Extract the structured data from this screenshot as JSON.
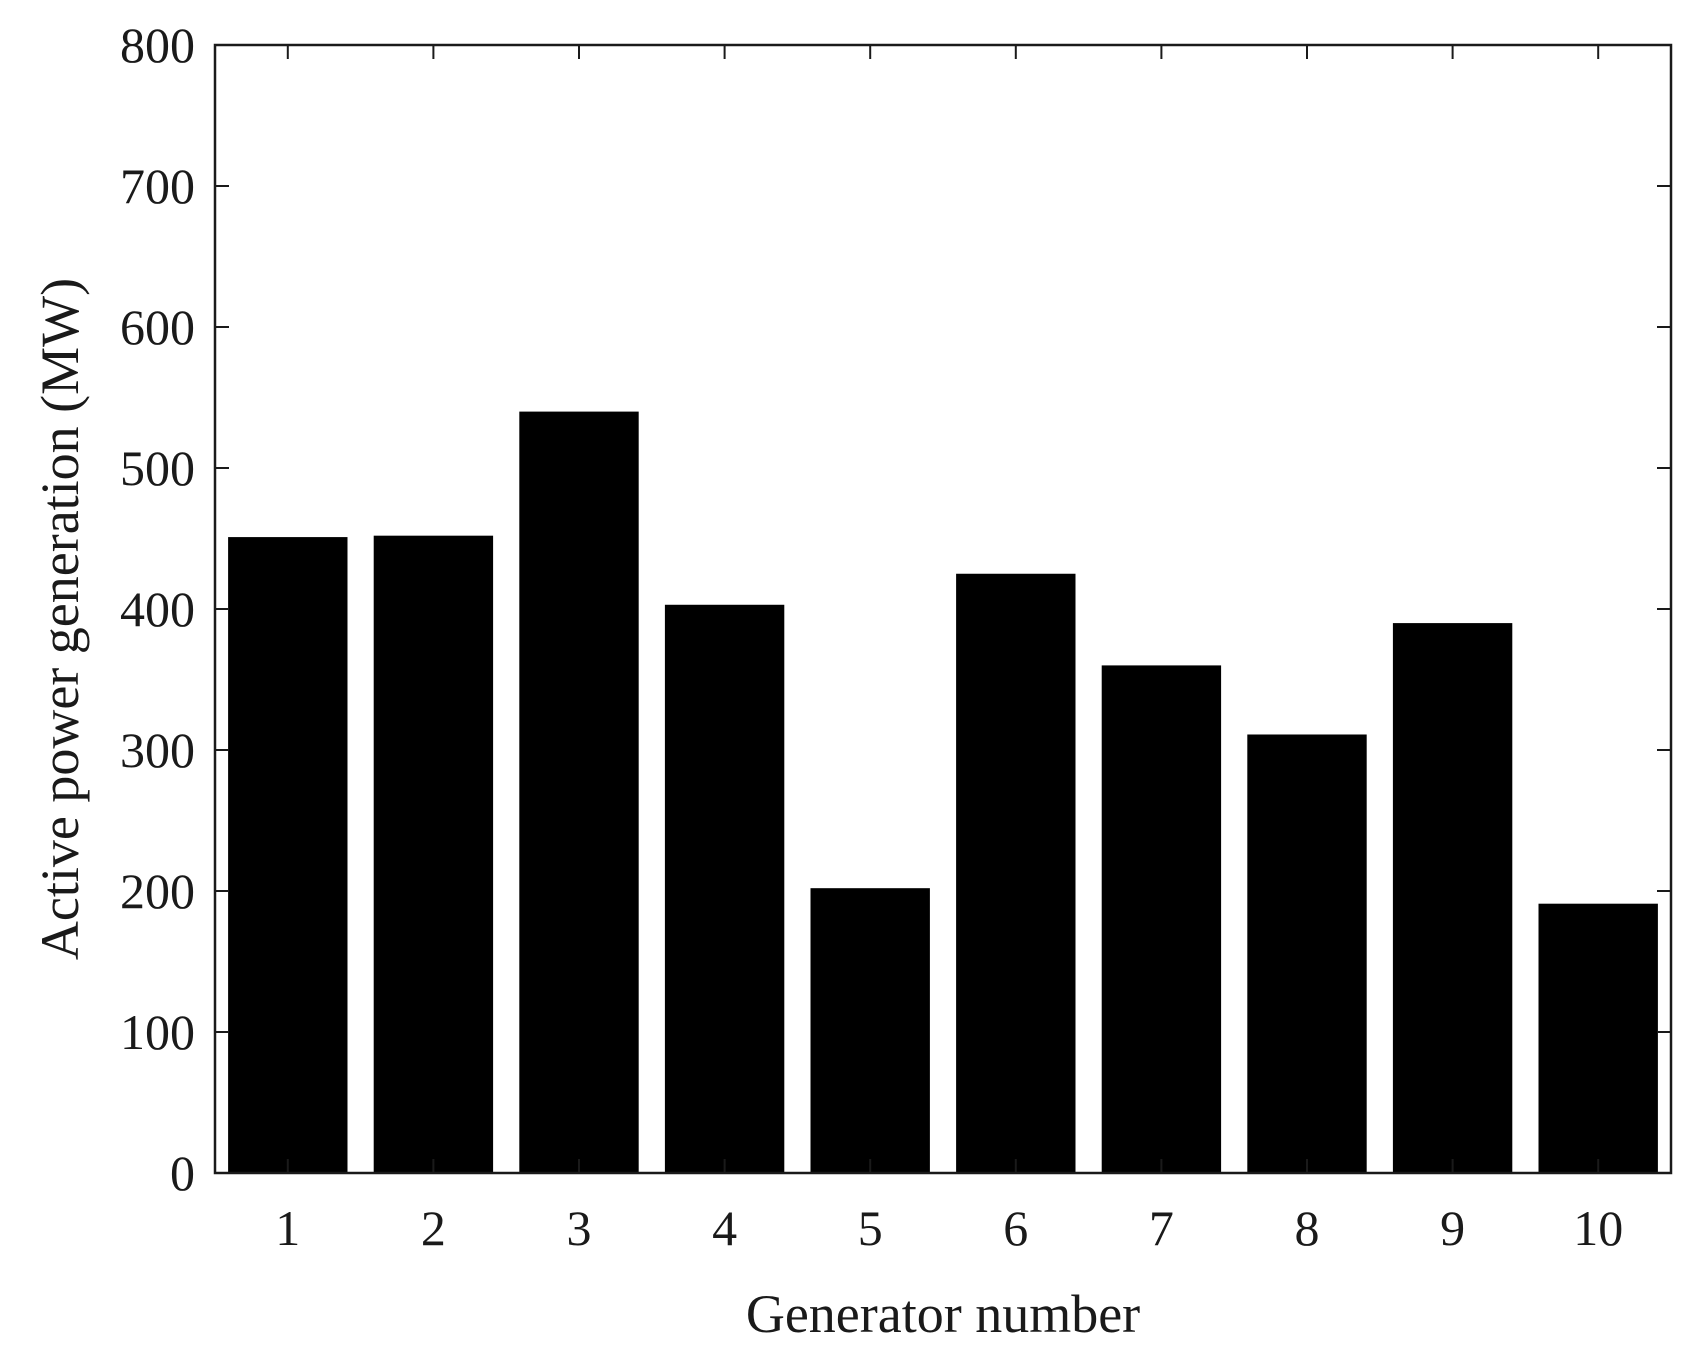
{
  "chart_data": {
    "type": "bar",
    "title": "",
    "xlabel": "Generator number",
    "ylabel": "Active power generation (MW)",
    "categories": [
      "1",
      "2",
      "3",
      "4",
      "5",
      "6",
      "7",
      "8",
      "9",
      "10"
    ],
    "values": [
      451,
      452,
      540,
      403,
      202,
      425,
      360,
      311,
      390,
      191
    ],
    "ylim": [
      0,
      800
    ],
    "yticks": [
      "0",
      "100",
      "200",
      "300",
      "400",
      "500",
      "600",
      "700",
      "800"
    ],
    "grid": false,
    "legend": "none",
    "bar_color": "#000000"
  }
}
